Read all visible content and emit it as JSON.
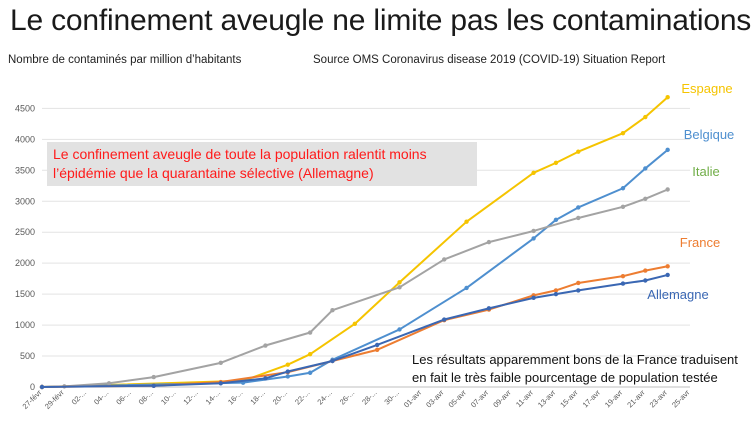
{
  "title": "Le confinement aveugle ne limite pas les contaminations",
  "subtitle_left": "Nombre de contaminés par million d’habitants",
  "subtitle_right": "Source OMS Coronavirus disease 2019 (COVID-19) Situation Report",
  "callout": "Le confinement aveugle de toute la population  ralentit moins l’épidémie que la quarantaine sélective (Allemagne)",
  "note": "Les résultats apparemment bons de la France traduisent en fait le très faible pourcentage de population testée",
  "colors": {
    "Espagne": "#f5c400",
    "Belgique": "#4e8fcf",
    "Italie": "#a3a3a3",
    "France": "#ed7d31",
    "Allemagne": "#3a67b3",
    "Italie_label": "#70ad47"
  },
  "chart_data": {
    "type": "line",
    "x": [
      "27-févr",
      "29-févr",
      "02-...",
      "04-...",
      "06-...",
      "08-...",
      "10-...",
      "12-...",
      "14-...",
      "16-...",
      "18-...",
      "20-...",
      "22-...",
      "24-...",
      "26-...",
      "28-...",
      "30-...",
      "01-avr",
      "03-avr",
      "05-avr",
      "07-avr",
      "09-avr",
      "11-avr",
      "13-avr",
      "15-avr",
      "17-avr",
      "19-avr",
      "21-avr",
      "23-avr",
      "25-avr"
    ],
    "ylim": [
      0,
      4700
    ],
    "yticks": [
      0,
      500,
      1000,
      1500,
      2000,
      2500,
      3000,
      3500,
      4000,
      4500
    ],
    "grid": true,
    "series": [
      {
        "name": "Espagne",
        "points": [
          [
            0,
            0
          ],
          [
            9,
            100
          ],
          [
            11,
            360
          ],
          [
            12,
            530
          ],
          [
            14,
            1020
          ],
          [
            16,
            1690
          ],
          [
            19,
            2670
          ],
          [
            22,
            3460
          ],
          [
            23,
            3620
          ],
          [
            24,
            3800
          ],
          [
            26,
            4100
          ],
          [
            27,
            4360
          ],
          [
            28,
            4680
          ]
        ]
      },
      {
        "name": "Belgique",
        "points": [
          [
            0,
            0
          ],
          [
            9,
            70
          ],
          [
            11,
            170
          ],
          [
            12,
            230
          ],
          [
            13,
            440
          ],
          [
            16,
            930
          ],
          [
            19,
            1600
          ],
          [
            22,
            2400
          ],
          [
            23,
            2700
          ],
          [
            24,
            2900
          ],
          [
            26,
            3210
          ],
          [
            27,
            3530
          ],
          [
            28,
            3830
          ]
        ]
      },
      {
        "name": "Italie",
        "points": [
          [
            0,
            0
          ],
          [
            1,
            10
          ],
          [
            3,
            60
          ],
          [
            5,
            160
          ],
          [
            8,
            390
          ],
          [
            10,
            670
          ],
          [
            12,
            880
          ],
          [
            13,
            1240
          ],
          [
            16,
            1610
          ],
          [
            18,
            2060
          ],
          [
            20,
            2340
          ],
          [
            22,
            2520
          ],
          [
            24,
            2730
          ],
          [
            26,
            2910
          ],
          [
            27,
            3040
          ],
          [
            28,
            3190
          ]
        ]
      },
      {
        "name": "France",
        "points": [
          [
            0,
            0
          ],
          [
            5,
            20
          ],
          [
            8,
            80
          ],
          [
            11,
            240
          ],
          [
            13,
            420
          ],
          [
            15,
            600
          ],
          [
            18,
            1080
          ],
          [
            20,
            1250
          ],
          [
            22,
            1480
          ],
          [
            23,
            1560
          ],
          [
            24,
            1680
          ],
          [
            26,
            1790
          ],
          [
            27,
            1880
          ],
          [
            28,
            1950
          ]
        ]
      },
      {
        "name": "Allemagne",
        "points": [
          [
            0,
            0
          ],
          [
            5,
            20
          ],
          [
            8,
            60
          ],
          [
            10,
            140
          ],
          [
            11,
            250
          ],
          [
            13,
            420
          ],
          [
            15,
            680
          ],
          [
            18,
            1090
          ],
          [
            20,
            1270
          ],
          [
            22,
            1440
          ],
          [
            23,
            1500
          ],
          [
            24,
            1560
          ],
          [
            26,
            1670
          ],
          [
            27,
            1720
          ],
          [
            28,
            1810
          ]
        ]
      }
    ]
  }
}
